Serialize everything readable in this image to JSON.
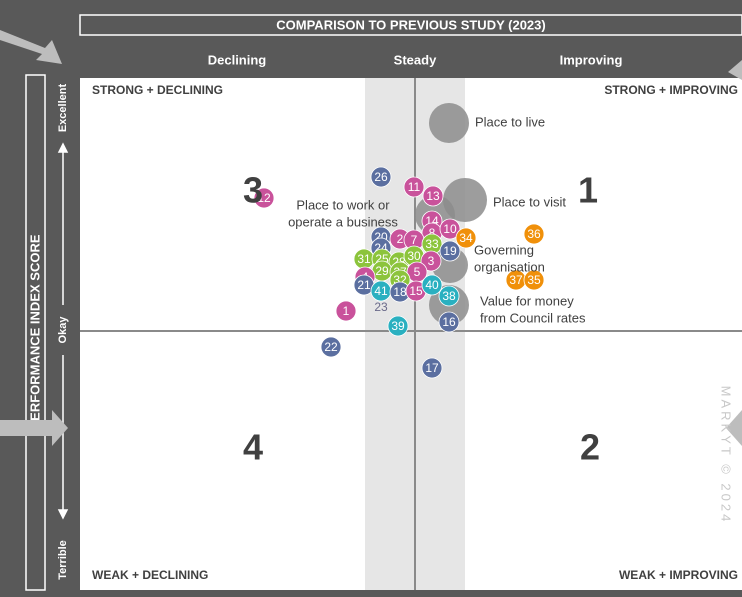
{
  "header": {
    "title": "COMPARISON TO PREVIOUS STUDY (2023)",
    "columns": [
      "Declining",
      "Steady",
      "Improving"
    ]
  },
  "axis": {
    "title": "PERFORMANCE INDEX SCORE",
    "levels": [
      "Excellent",
      "Okay",
      "Terrible"
    ]
  },
  "quadrants": [
    {
      "label": "STRONG + DECLINING",
      "number": "3"
    },
    {
      "label": "STRONG + IMPROVING",
      "number": "1"
    },
    {
      "label": "WEAK + DECLINING",
      "number": "4"
    },
    {
      "label": "WEAK + IMPROVING",
      "number": "2"
    }
  ],
  "areas": [
    {
      "lines": [
        "Place to live"
      ]
    },
    {
      "lines": [
        "Place to visit"
      ]
    },
    {
      "lines": [
        "Place to work or",
        "operate a business"
      ]
    },
    {
      "lines": [
        "Governing",
        "organisation"
      ]
    },
    {
      "lines": [
        "Value for money",
        "from Council rates"
      ]
    }
  ],
  "bubbles": [
    {
      "label": "26",
      "color": "#5b6fa0"
    },
    {
      "label": "12",
      "color": "#c9529b"
    },
    {
      "label": "11",
      "color": "#c9529b"
    },
    {
      "label": "13",
      "color": "#c9529b"
    },
    {
      "label": "14",
      "color": "#c9529b"
    },
    {
      "label": "8",
      "color": "#c9529b"
    },
    {
      "label": "10",
      "color": "#c9529b"
    },
    {
      "label": "34",
      "color": "#f0900a"
    },
    {
      "label": "36",
      "color": "#f0900a"
    },
    {
      "label": "20",
      "color": "#5b6fa0"
    },
    {
      "label": "24",
      "color": "#5b6fa0"
    },
    {
      "label": "2",
      "color": "#c9529b"
    },
    {
      "label": "7",
      "color": "#c9529b"
    },
    {
      "label": "33",
      "color": "#8cc43c"
    },
    {
      "label": "19",
      "color": "#5b6fa0"
    },
    {
      "label": "31",
      "color": "#8cc43c"
    },
    {
      "label": "25",
      "color": "#8cc43c"
    },
    {
      "label": "28",
      "color": "#8cc43c"
    },
    {
      "label": "30",
      "color": "#8cc43c"
    },
    {
      "label": "3",
      "color": "#c9529b"
    },
    {
      "label": "29",
      "color": "#8cc43c"
    },
    {
      "label": "27",
      "color": "#8cc43c"
    },
    {
      "label": "5",
      "color": "#c9529b"
    },
    {
      "label": "4",
      "color": "#c9529b"
    },
    {
      "label": "21",
      "color": "#5b6fa0"
    },
    {
      "label": "32",
      "color": "#8cc43c"
    },
    {
      "label": "41",
      "color": "#2ab0c0"
    },
    {
      "label": "18",
      "color": "#5b6fa0"
    },
    {
      "label": "15",
      "color": "#c9529b"
    },
    {
      "label": "40",
      "color": "#2ab0c0"
    },
    {
      "label": "38",
      "color": "#2ab0c0"
    },
    {
      "label": "37",
      "color": "#f0900a"
    },
    {
      "label": "35",
      "color": "#f0900a"
    },
    {
      "label": "1",
      "color": "#c9529b"
    },
    {
      "label": "16",
      "color": "#5b6fa0"
    },
    {
      "label": "39",
      "color": "#2ab0c0"
    },
    {
      "label": "22",
      "color": "#5b6fa0"
    },
    {
      "label": "17",
      "color": "#5b6fa0"
    }
  ],
  "loose_label": "23",
  "watermark": "MARKYT © 2024"
}
